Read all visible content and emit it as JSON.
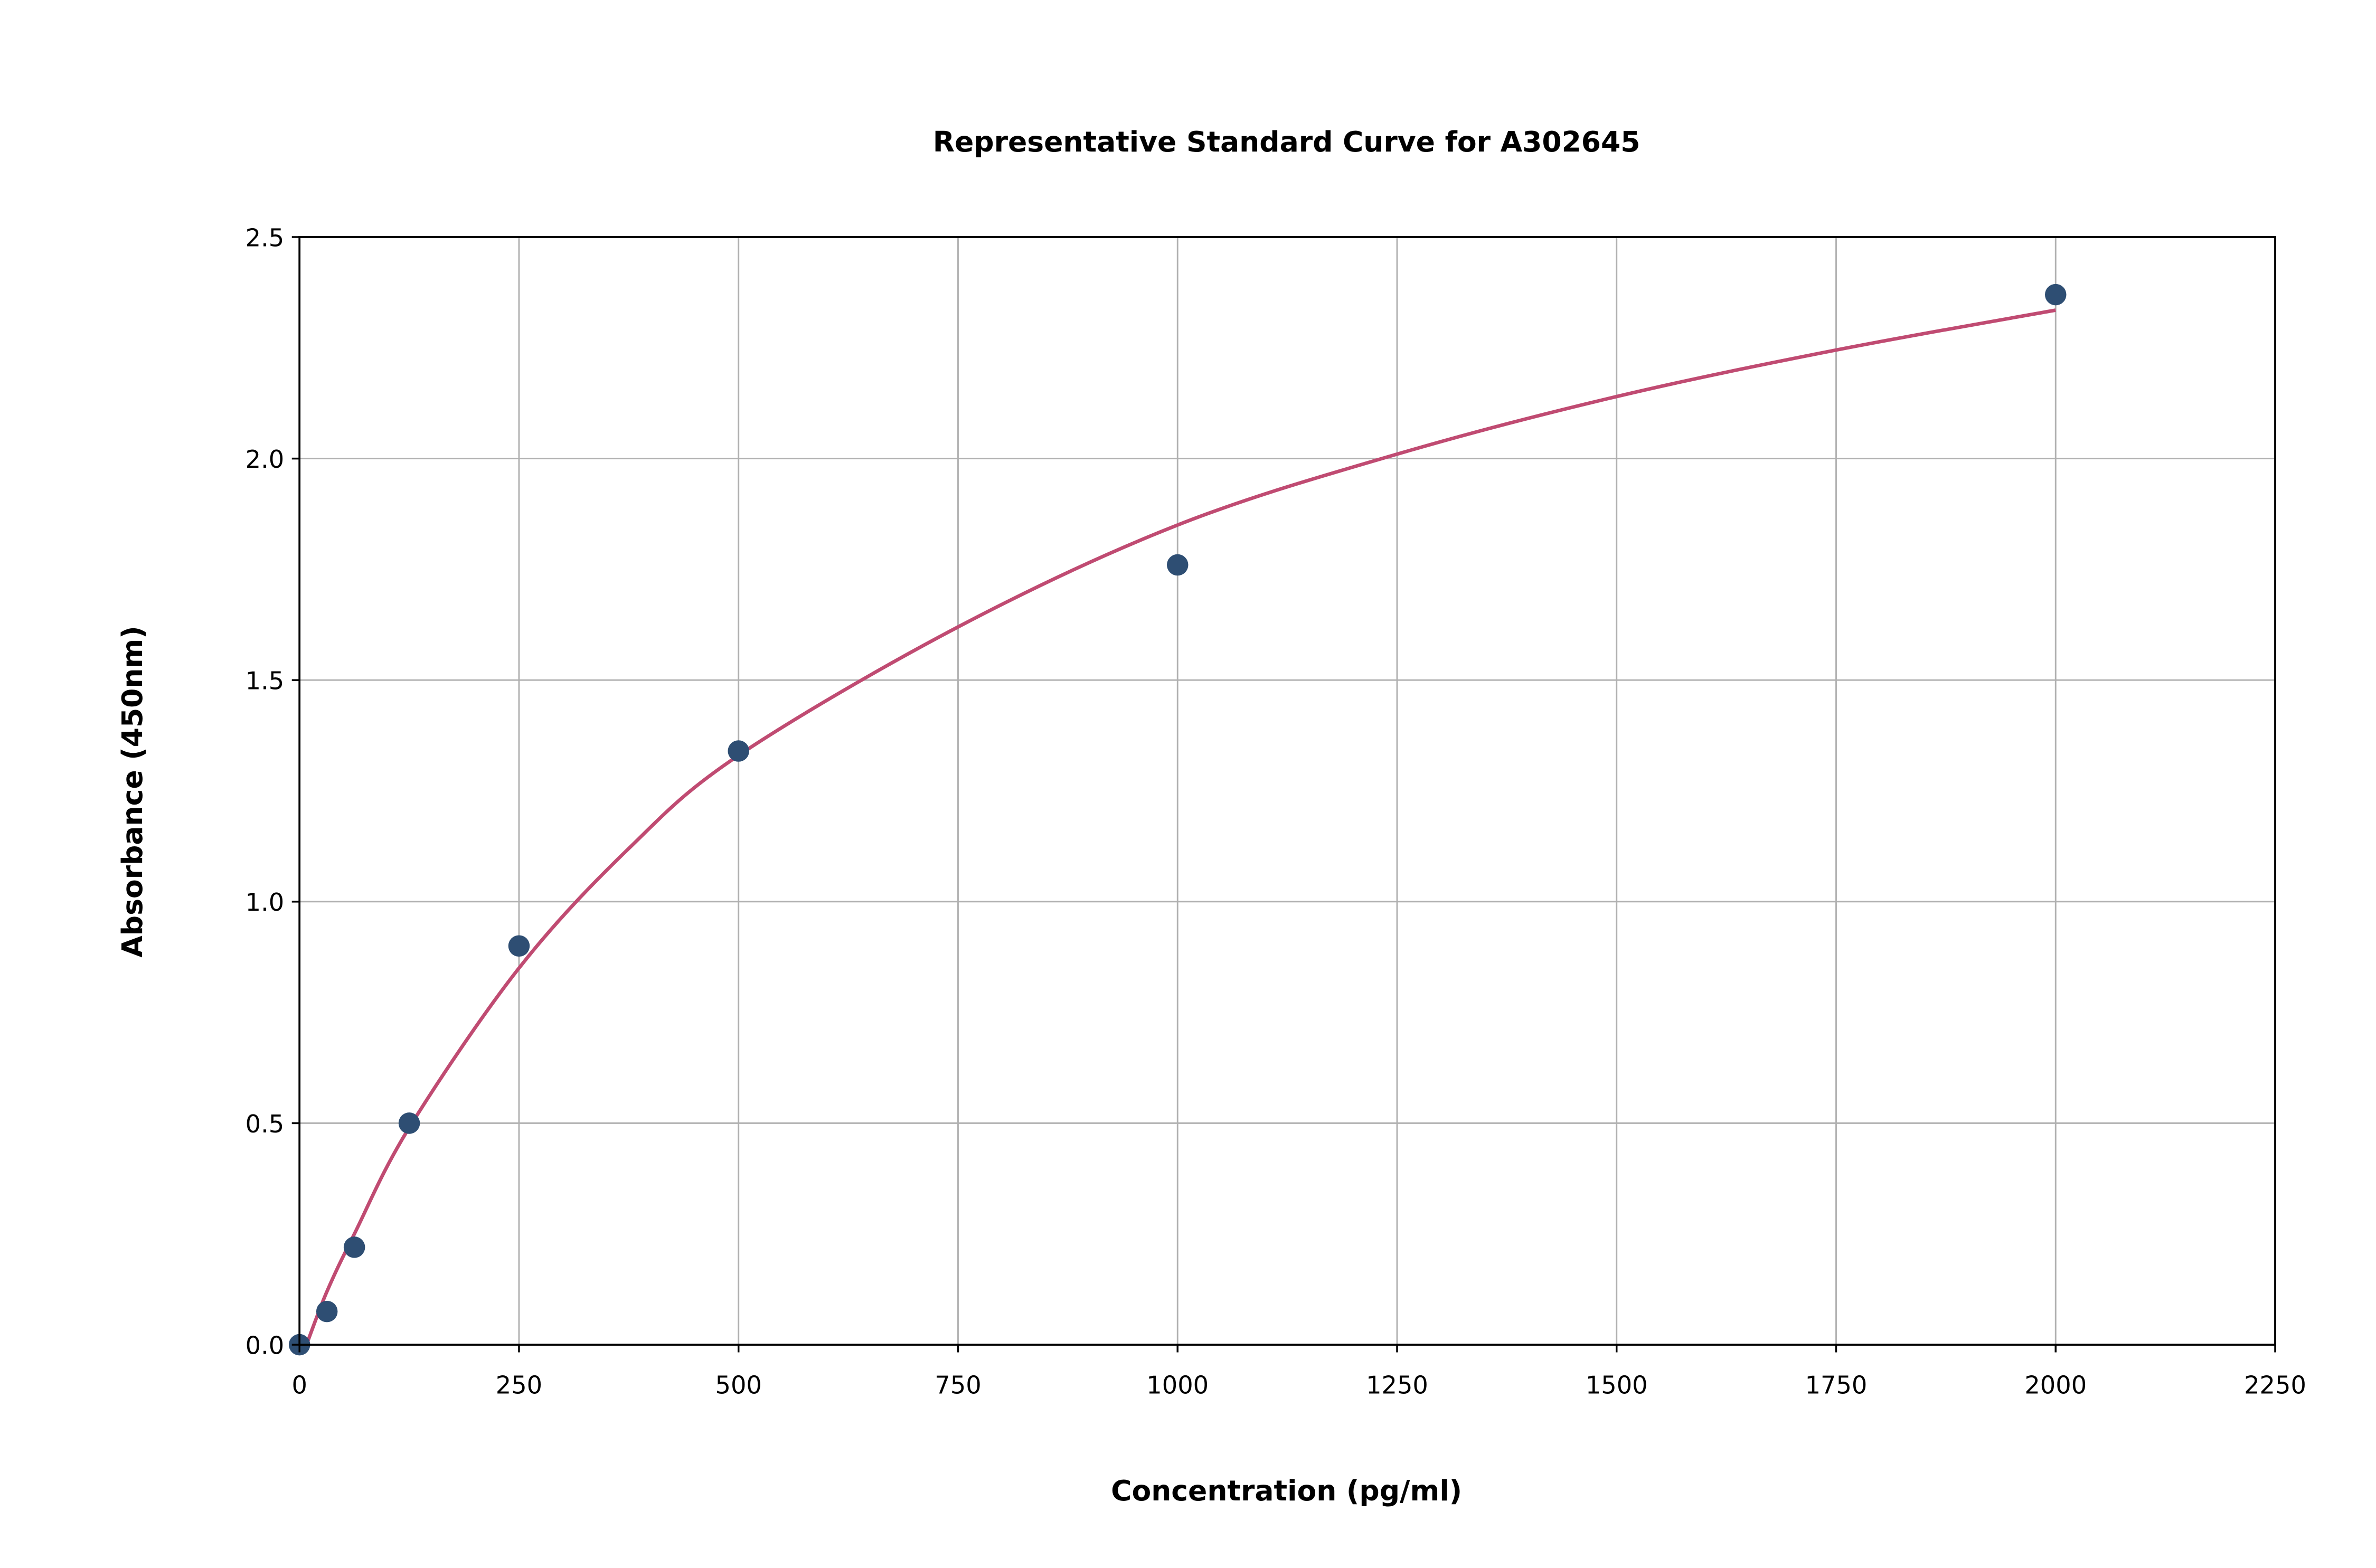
{
  "chart_data": {
    "type": "scatter",
    "title": "Representative Standard Curve for A302645",
    "xlabel": "Concentration (pg/ml)",
    "ylabel": "Absorbance (450nm)",
    "xlim": [
      0,
      2250
    ],
    "ylim": [
      0,
      2.5
    ],
    "xticks": [
      "0",
      "250",
      "500",
      "750",
      "1000",
      "1250",
      "1500",
      "1750",
      "2000",
      "2250"
    ],
    "yticks": [
      "0.0",
      "0.5",
      "1.0",
      "1.5",
      "2.0",
      "2.5"
    ],
    "grid": true,
    "points": {
      "x": [
        0,
        31.25,
        62.5,
        125,
        250,
        500,
        1000,
        2000
      ],
      "y": [
        0.0,
        0.075,
        0.22,
        0.5,
        0.9,
        1.34,
        1.76,
        2.37
      ]
    },
    "fit_curve": {
      "x": [
        8,
        31.25,
        62.5,
        125,
        250,
        375,
        500,
        750,
        1000,
        1250,
        1500,
        1750,
        2000
      ],
      "y": [
        0.0,
        0.12,
        0.25,
        0.49,
        0.85,
        1.12,
        1.33,
        1.62,
        1.85,
        2.01,
        2.14,
        2.245,
        2.335
      ]
    },
    "colors": {
      "points": "#2e4e73",
      "curve": "#c04b72",
      "grid": "#b0b0b0"
    }
  }
}
